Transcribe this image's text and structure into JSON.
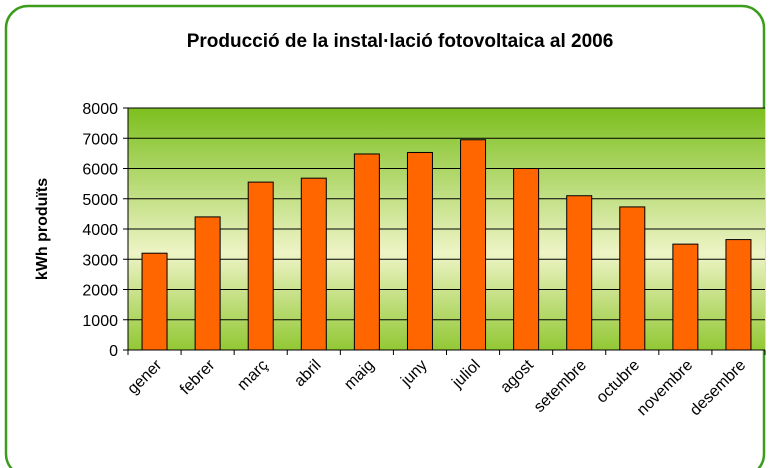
{
  "chart_data": {
    "type": "bar",
    "title": "Producció de la instal·lació fotovoltaica al 2006",
    "y_label": "kWh produïts",
    "categories": [
      "gener",
      "febrer",
      "març",
      "abril",
      "maig",
      "juny",
      "juliol",
      "agost",
      "setembre",
      "octubre",
      "novembre",
      "desembre"
    ],
    "values": [
      3200,
      4400,
      5550,
      5680,
      6480,
      6530,
      6950,
      6000,
      5100,
      4730,
      3500,
      3650
    ],
    "color": "#ff6600",
    "ylim": [
      0,
      8000
    ],
    "yticks": [
      0,
      1000,
      2000,
      3000,
      4000,
      5000,
      6000,
      7000,
      8000
    ],
    "grid": true
  }
}
